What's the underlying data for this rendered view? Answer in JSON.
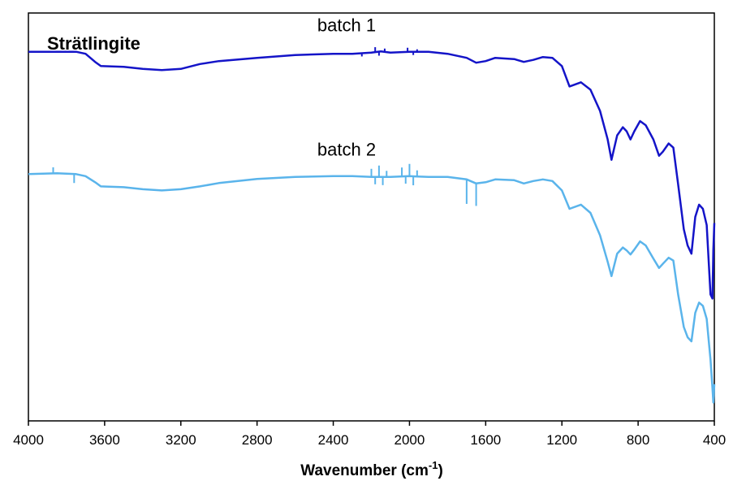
{
  "chart_data": {
    "type": "line",
    "title": "Strätlingite",
    "xlabel_main": "Wavenumber (cm",
    "xlabel_sup": "-1",
    "xlabel_close": ")",
    "xlim": [
      4000,
      400
    ],
    "x_reversed": true,
    "xticks": [
      4000,
      3600,
      3200,
      2800,
      2400,
      2000,
      1600,
      1200,
      800,
      400
    ],
    "y_axis_visible": false,
    "grid": false,
    "series": [
      {
        "name": "batch 1",
        "color": "#1414c8",
        "points": [
          [
            4000,
            0.905
          ],
          [
            3750,
            0.905
          ],
          [
            3700,
            0.9
          ],
          [
            3650,
            0.88
          ],
          [
            3620,
            0.87
          ],
          [
            3500,
            0.868
          ],
          [
            3400,
            0.863
          ],
          [
            3300,
            0.86
          ],
          [
            3200,
            0.863
          ],
          [
            3100,
            0.875
          ],
          [
            3000,
            0.882
          ],
          [
            2800,
            0.89
          ],
          [
            2600,
            0.897
          ],
          [
            2400,
            0.9
          ],
          [
            2300,
            0.9
          ],
          [
            2200,
            0.903
          ],
          [
            2150,
            0.906
          ],
          [
            2100,
            0.903
          ],
          [
            2000,
            0.905
          ],
          [
            1900,
            0.905
          ],
          [
            1800,
            0.9
          ],
          [
            1700,
            0.89
          ],
          [
            1650,
            0.878
          ],
          [
            1600,
            0.882
          ],
          [
            1550,
            0.89
          ],
          [
            1450,
            0.887
          ],
          [
            1400,
            0.88
          ],
          [
            1350,
            0.885
          ],
          [
            1300,
            0.892
          ],
          [
            1250,
            0.89
          ],
          [
            1200,
            0.87
          ],
          [
            1160,
            0.82
          ],
          [
            1100,
            0.83
          ],
          [
            1050,
            0.812
          ],
          [
            1000,
            0.76
          ],
          [
            960,
            0.69
          ],
          [
            940,
            0.64
          ],
          [
            910,
            0.7
          ],
          [
            880,
            0.72
          ],
          [
            860,
            0.71
          ],
          [
            840,
            0.69
          ],
          [
            820,
            0.71
          ],
          [
            790,
            0.735
          ],
          [
            760,
            0.725
          ],
          [
            720,
            0.69
          ],
          [
            690,
            0.65
          ],
          [
            670,
            0.66
          ],
          [
            640,
            0.68
          ],
          [
            615,
            0.67
          ],
          [
            590,
            0.58
          ],
          [
            560,
            0.47
          ],
          [
            540,
            0.43
          ],
          [
            520,
            0.41
          ],
          [
            500,
            0.5
          ],
          [
            480,
            0.53
          ],
          [
            460,
            0.52
          ],
          [
            440,
            0.48
          ],
          [
            420,
            0.31
          ],
          [
            410,
            0.3
          ],
          [
            405,
            0.42
          ],
          [
            400,
            0.485
          ]
        ]
      },
      {
        "name": "batch 2",
        "color": "#5ab4eb",
        "points": [
          [
            4000,
            0.605
          ],
          [
            3850,
            0.607
          ],
          [
            3750,
            0.605
          ],
          [
            3700,
            0.6
          ],
          [
            3650,
            0.585
          ],
          [
            3620,
            0.575
          ],
          [
            3500,
            0.573
          ],
          [
            3400,
            0.568
          ],
          [
            3300,
            0.565
          ],
          [
            3200,
            0.568
          ],
          [
            3100,
            0.575
          ],
          [
            3000,
            0.583
          ],
          [
            2800,
            0.593
          ],
          [
            2600,
            0.598
          ],
          [
            2400,
            0.6
          ],
          [
            2300,
            0.6
          ],
          [
            2200,
            0.598
          ],
          [
            2100,
            0.598
          ],
          [
            2000,
            0.6
          ],
          [
            1900,
            0.598
          ],
          [
            1800,
            0.598
          ],
          [
            1700,
            0.592
          ],
          [
            1650,
            0.582
          ],
          [
            1600,
            0.585
          ],
          [
            1550,
            0.592
          ],
          [
            1450,
            0.59
          ],
          [
            1400,
            0.582
          ],
          [
            1350,
            0.588
          ],
          [
            1300,
            0.592
          ],
          [
            1250,
            0.588
          ],
          [
            1200,
            0.565
          ],
          [
            1160,
            0.52
          ],
          [
            1100,
            0.53
          ],
          [
            1050,
            0.51
          ],
          [
            1000,
            0.455
          ],
          [
            960,
            0.39
          ],
          [
            940,
            0.355
          ],
          [
            910,
            0.41
          ],
          [
            880,
            0.425
          ],
          [
            860,
            0.418
          ],
          [
            840,
            0.408
          ],
          [
            820,
            0.42
          ],
          [
            790,
            0.44
          ],
          [
            760,
            0.43
          ],
          [
            720,
            0.398
          ],
          [
            690,
            0.375
          ],
          [
            670,
            0.385
          ],
          [
            640,
            0.4
          ],
          [
            615,
            0.393
          ],
          [
            590,
            0.31
          ],
          [
            560,
            0.23
          ],
          [
            540,
            0.205
          ],
          [
            520,
            0.195
          ],
          [
            500,
            0.265
          ],
          [
            480,
            0.29
          ],
          [
            460,
            0.282
          ],
          [
            440,
            0.25
          ],
          [
            420,
            0.15
          ],
          [
            410,
            0.08
          ],
          [
            405,
            0.045
          ],
          [
            400,
            0.09
          ]
        ]
      }
    ],
    "series_labels": [
      {
        "text": "batch 1",
        "x": 2330,
        "y": 0.955
      },
      {
        "text": "batch 2",
        "x": 2330,
        "y": 0.65
      }
    ],
    "spikes": [
      {
        "series": 0,
        "x": [
          2180,
          2160,
          2130,
          2010,
          1980,
          1960,
          2250
        ],
        "amp": [
          0.012,
          -0.01,
          0.008,
          0.01,
          -0.008,
          0.006,
          -0.008
        ]
      },
      {
        "series": 1,
        "x": [
          3870,
          3760,
          2200,
          2180,
          2160,
          2140,
          2120,
          2040,
          2020,
          2000,
          1980,
          1960,
          1700,
          1650
        ],
        "amp": [
          0.015,
          -0.022,
          0.02,
          -0.018,
          0.028,
          -0.02,
          0.015,
          0.022,
          -0.018,
          0.03,
          -0.022,
          0.015,
          -0.06,
          -0.055
        ]
      }
    ]
  }
}
